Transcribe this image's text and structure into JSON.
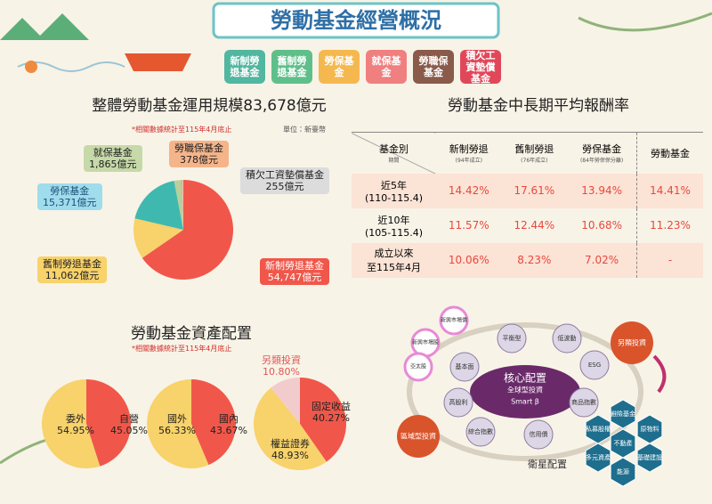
{
  "header": {
    "title": "勞動基金經營概況",
    "tabs": [
      "新制勞退基金",
      "舊制勞退基金",
      "勞保基金",
      "就保基金",
      "勞職保基金",
      "積欠工資墊償基金"
    ]
  },
  "overview": {
    "title": "整體勞動基金運用規模83,678億元",
    "note": "*相關數據統計至115年4月底止",
    "unit": "單位：新臺幣",
    "names": [
      "新制勞退基金",
      "舊制勞退基金",
      "勞保基金",
      "就保基金",
      "勞職保基金",
      "積欠工資墊償基金"
    ],
    "values": [
      54747,
      11062,
      15371,
      1865,
      378,
      255
    ],
    "value_labels": [
      "54,747億元",
      "11,062億元",
      "15,371億元",
      "1,865億元",
      "378億元",
      "255億元"
    ],
    "colors": [
      "#f0574a",
      "#f8d26a",
      "#3fb8b0",
      "#b9cf9a",
      "#f3a276",
      "#cfcfcf"
    ]
  },
  "returns": {
    "title": "勞動基金中長期平均報酬率",
    "corner": [
      "基金別",
      "期間"
    ],
    "columns": [
      {
        "name": "新制勞退",
        "sub": "(94年成立)"
      },
      {
        "name": "舊制勞退",
        "sub": "(76年成立)"
      },
      {
        "name": "勞保基金",
        "sub": "(84年勞保保分離)"
      },
      {
        "name": "勞動基金"
      }
    ],
    "rows": [
      {
        "period": [
          "近5年",
          "(110-115.4)"
        ],
        "values": [
          "14.42%",
          "17.61%",
          "13.94%",
          "14.41%"
        ]
      },
      {
        "period": [
          "近10年",
          "(105-115.4)"
        ],
        "values": [
          "11.57%",
          "12.44%",
          "10.68%",
          "11.23%"
        ]
      },
      {
        "period": [
          "成立以來",
          "至115年4月"
        ],
        "values": [
          "10.06%",
          "8.23%",
          "7.02%",
          "-"
        ]
      }
    ]
  },
  "allocation": {
    "title": "勞動基金資產配置",
    "note": "*相關數據統計至115年4月底止",
    "pies": [
      {
        "names": [
          "自營",
          "委外"
        ],
        "values": [
          45.05,
          54.95
        ],
        "value_labels": [
          "45.05%",
          "54.95%"
        ],
        "colors": [
          "#f0574a",
          "#f8d26a"
        ]
      },
      {
        "names": [
          "國內",
          "國外"
        ],
        "values": [
          43.67,
          56.33
        ],
        "value_labels": [
          "43.67%",
          "56.33%"
        ],
        "colors": [
          "#f0574a",
          "#f8d26a"
        ]
      },
      {
        "names": [
          "固定收益",
          "權益證券",
          "另類投資"
        ],
        "values": [
          40.27,
          48.93,
          10.8
        ],
        "value_labels": [
          "40.27%",
          "48.93%",
          "10.80%"
        ],
        "colors": [
          "#f0574a",
          "#f8d26a",
          "#f2cccc"
        ]
      }
    ]
  },
  "diagram": {
    "core": [
      "核心配置",
      "全球型投資",
      "Smart β"
    ],
    "factors": [
      "平衡型",
      "低波動",
      "ESG",
      "商品指數",
      "信用債",
      "綜合指數",
      "高股利",
      "基本面"
    ],
    "regional": {
      "label": "區域型投資",
      "items": [
        "新興市場債",
        "新興市場股",
        "亞太股"
      ]
    },
    "alternative": {
      "label": "另類投資",
      "items": [
        "避險基金",
        "原物料",
        "私募股權",
        "不動產",
        "基礎建設",
        "多元資產",
        "能源"
      ]
    },
    "satellite": "衛星配置"
  }
}
